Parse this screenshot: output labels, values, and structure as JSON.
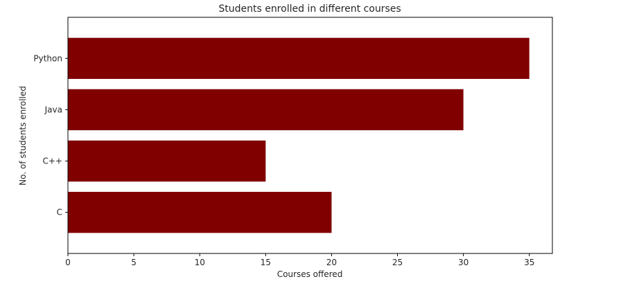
{
  "chart_data": {
    "type": "bar",
    "orientation": "horizontal",
    "title": "Students enrolled in different courses",
    "xlabel": "Courses offered",
    "ylabel": "No. of students enrolled",
    "categories": [
      "C",
      "C++",
      "Java",
      "Python"
    ],
    "values": [
      20,
      15,
      30,
      35
    ],
    "xlim": [
      0,
      36.75
    ],
    "xticks": [
      0,
      5,
      10,
      15,
      20,
      25,
      30,
      35
    ],
    "grid": false,
    "bar_color": "#800000"
  }
}
